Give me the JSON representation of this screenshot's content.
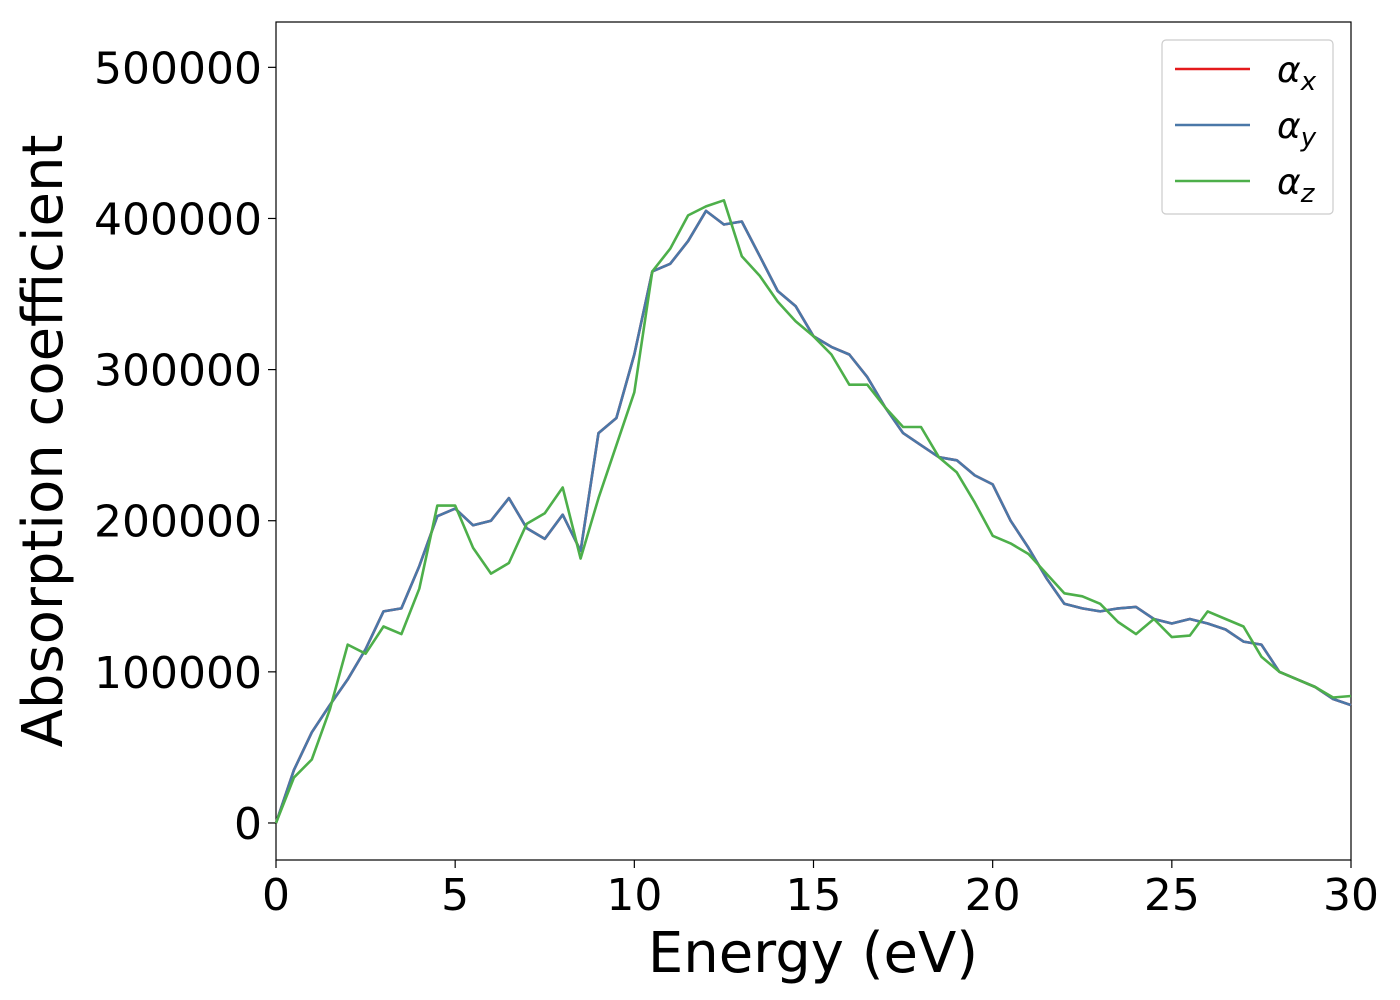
{
  "chart_data": {
    "type": "line",
    "xlabel": "Energy (eV)",
    "ylabel": "Absorption coefficient",
    "x": [
      0,
      0.5,
      1,
      1.5,
      2,
      2.5,
      3,
      3.5,
      4,
      4.5,
      5,
      5.5,
      6,
      6.5,
      7,
      7.5,
      8,
      8.5,
      9,
      9.5,
      10,
      10.5,
      11,
      11.5,
      12,
      12.5,
      13,
      13.5,
      14,
      14.5,
      15,
      15.5,
      16,
      16.5,
      17,
      17.5,
      18,
      18.5,
      19,
      19.5,
      20,
      20.5,
      21,
      21.5,
      22,
      22.5,
      23,
      23.5,
      24,
      24.5,
      25,
      25.5,
      26,
      26.5,
      27,
      27.5,
      28,
      28.5,
      29,
      29.5,
      30
    ],
    "series": [
      {
        "name": "αx",
        "color": "#e41a1c",
        "values": [
          0,
          35000,
          60000,
          78000,
          95000,
          115000,
          140000,
          142000,
          170000,
          203000,
          208000,
          197000,
          200000,
          215000,
          195000,
          188000,
          204000,
          180000,
          258000,
          268000,
          310000,
          365000,
          370000,
          385000,
          405000,
          396000,
          398000,
          375000,
          352000,
          342000,
          322000,
          315000,
          310000,
          295000,
          275000,
          258000,
          250000,
          242000,
          240000,
          230000,
          224000,
          200000,
          182000,
          162000,
          145000,
          142000,
          140000,
          142000,
          143000,
          135000,
          132000,
          135000,
          132000,
          128000,
          120000,
          118000,
          100000,
          95000,
          90000,
          82000,
          78000
        ]
      },
      {
        "name": "αy",
        "color": "#4a78a8",
        "values": [
          0,
          35000,
          60000,
          78000,
          95000,
          115000,
          140000,
          142000,
          170000,
          203000,
          208000,
          197000,
          200000,
          215000,
          195000,
          188000,
          204000,
          180000,
          258000,
          268000,
          310000,
          365000,
          370000,
          385000,
          405000,
          396000,
          398000,
          375000,
          352000,
          342000,
          322000,
          315000,
          310000,
          295000,
          275000,
          258000,
          250000,
          242000,
          240000,
          230000,
          224000,
          200000,
          182000,
          162000,
          145000,
          142000,
          140000,
          142000,
          143000,
          135000,
          132000,
          135000,
          132000,
          128000,
          120000,
          118000,
          100000,
          95000,
          90000,
          82000,
          78000
        ]
      },
      {
        "name": "αz",
        "color": "#4daf4a",
        "values": [
          0,
          30000,
          42000,
          75000,
          118000,
          112000,
          130000,
          125000,
          155000,
          210000,
          210000,
          182000,
          165000,
          172000,
          198000,
          205000,
          222000,
          175000,
          215000,
          250000,
          285000,
          365000,
          380000,
          402000,
          408000,
          412000,
          375000,
          362000,
          345000,
          332000,
          322000,
          310000,
          290000,
          290000,
          275000,
          262000,
          262000,
          242000,
          232000,
          212000,
          190000,
          185000,
          178000,
          165000,
          152000,
          150000,
          145000,
          133000,
          125000,
          135000,
          123000,
          124000,
          140000,
          135000,
          130000,
          110000,
          100000,
          95000,
          90000,
          83000,
          84000
        ]
      }
    ],
    "xlim": [
      0,
      30
    ],
    "xticks": [
      0,
      5,
      10,
      15,
      20,
      25,
      30
    ],
    "ylim": [
      -24500,
      530000
    ],
    "yticks": [
      0,
      100000,
      200000,
      300000,
      400000,
      500000
    ],
    "legend": "upper right",
    "grid": false
  }
}
